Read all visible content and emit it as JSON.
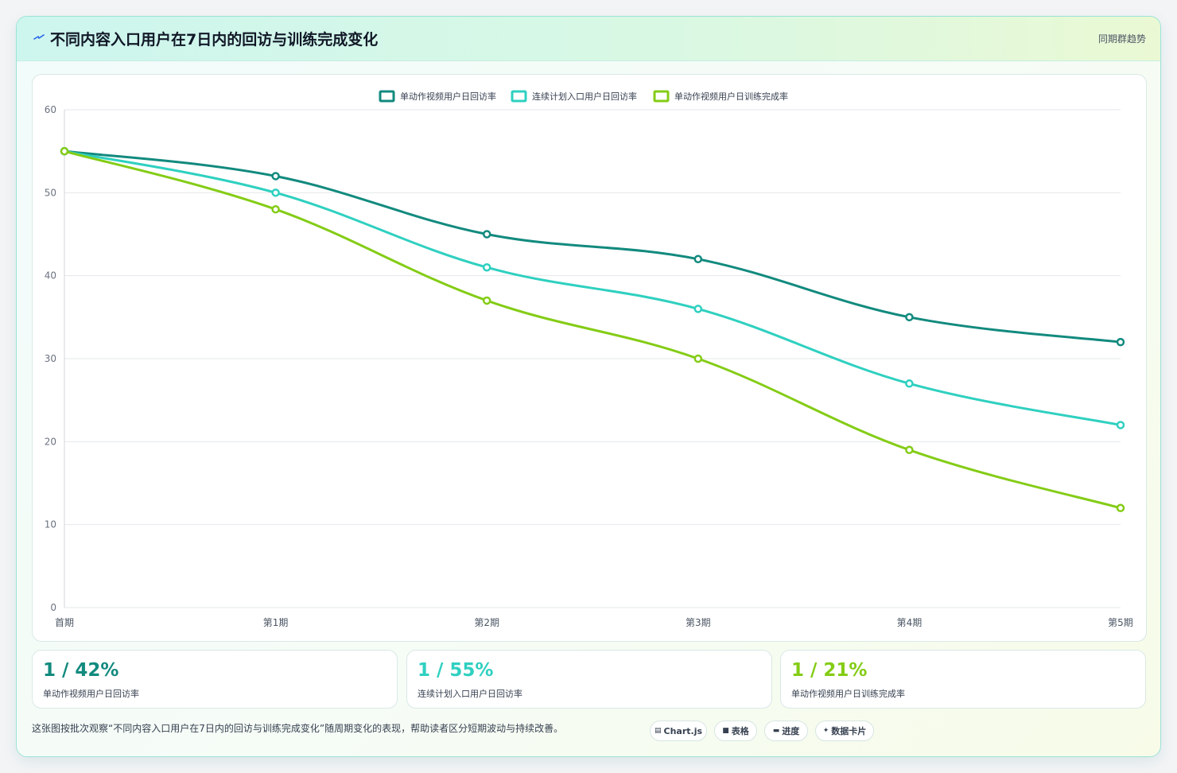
{
  "header": {
    "icon": "bolt-icon",
    "title": "不同内容入口用户在7日内的回访与训练完成变化",
    "right_link": "同期群趋势"
  },
  "chart_data": {
    "type": "line",
    "categories": [
      "首期",
      "第1期",
      "第2期",
      "第3期",
      "第4期",
      "第5期"
    ],
    "series": [
      {
        "name": "单动作视频用户日回访率",
        "color": "#128a7e",
        "values": [
          55,
          52,
          45,
          42,
          35,
          32
        ]
      },
      {
        "name": "连续计划入口用户日回访率",
        "color": "#2fd0c0",
        "values": [
          55,
          50,
          41,
          36,
          27,
          22
        ]
      },
      {
        "name": "单动作视频用户日训练完成率",
        "color": "#84cc16",
        "values": [
          55,
          48,
          37,
          30,
          19,
          12
        ]
      }
    ],
    "ylim": [
      0,
      60
    ],
    "yticks": [
      0,
      10,
      20,
      30,
      40,
      50,
      60
    ],
    "xlabel": "",
    "ylabel": "",
    "grid": true,
    "legend": "top-center"
  },
  "stats": [
    {
      "value": "1 / 42%",
      "label": "单动作视频用户日回访率",
      "color": "#128a7e"
    },
    {
      "value": "1 / 55%",
      "label": "连续计划入口用户日回访率",
      "color": "#2fd0c0"
    },
    {
      "value": "1 / 21%",
      "label": "单动作视频用户日训练完成率",
      "color": "#84cc16"
    }
  ],
  "footer": {
    "text": "这张图按批次观察“不同内容入口用户在7日内的回访与训练完成变化”随周期变化的表现，帮助读者区分短期波动与持续改善。",
    "pills": [
      {
        "icon": "chart-icon",
        "label": "Chart.js"
      },
      {
        "icon": "table-icon",
        "label": "表格"
      },
      {
        "icon": "progress-icon",
        "label": "进度"
      },
      {
        "icon": "sparkle-icon",
        "label": "数据卡片"
      }
    ]
  }
}
